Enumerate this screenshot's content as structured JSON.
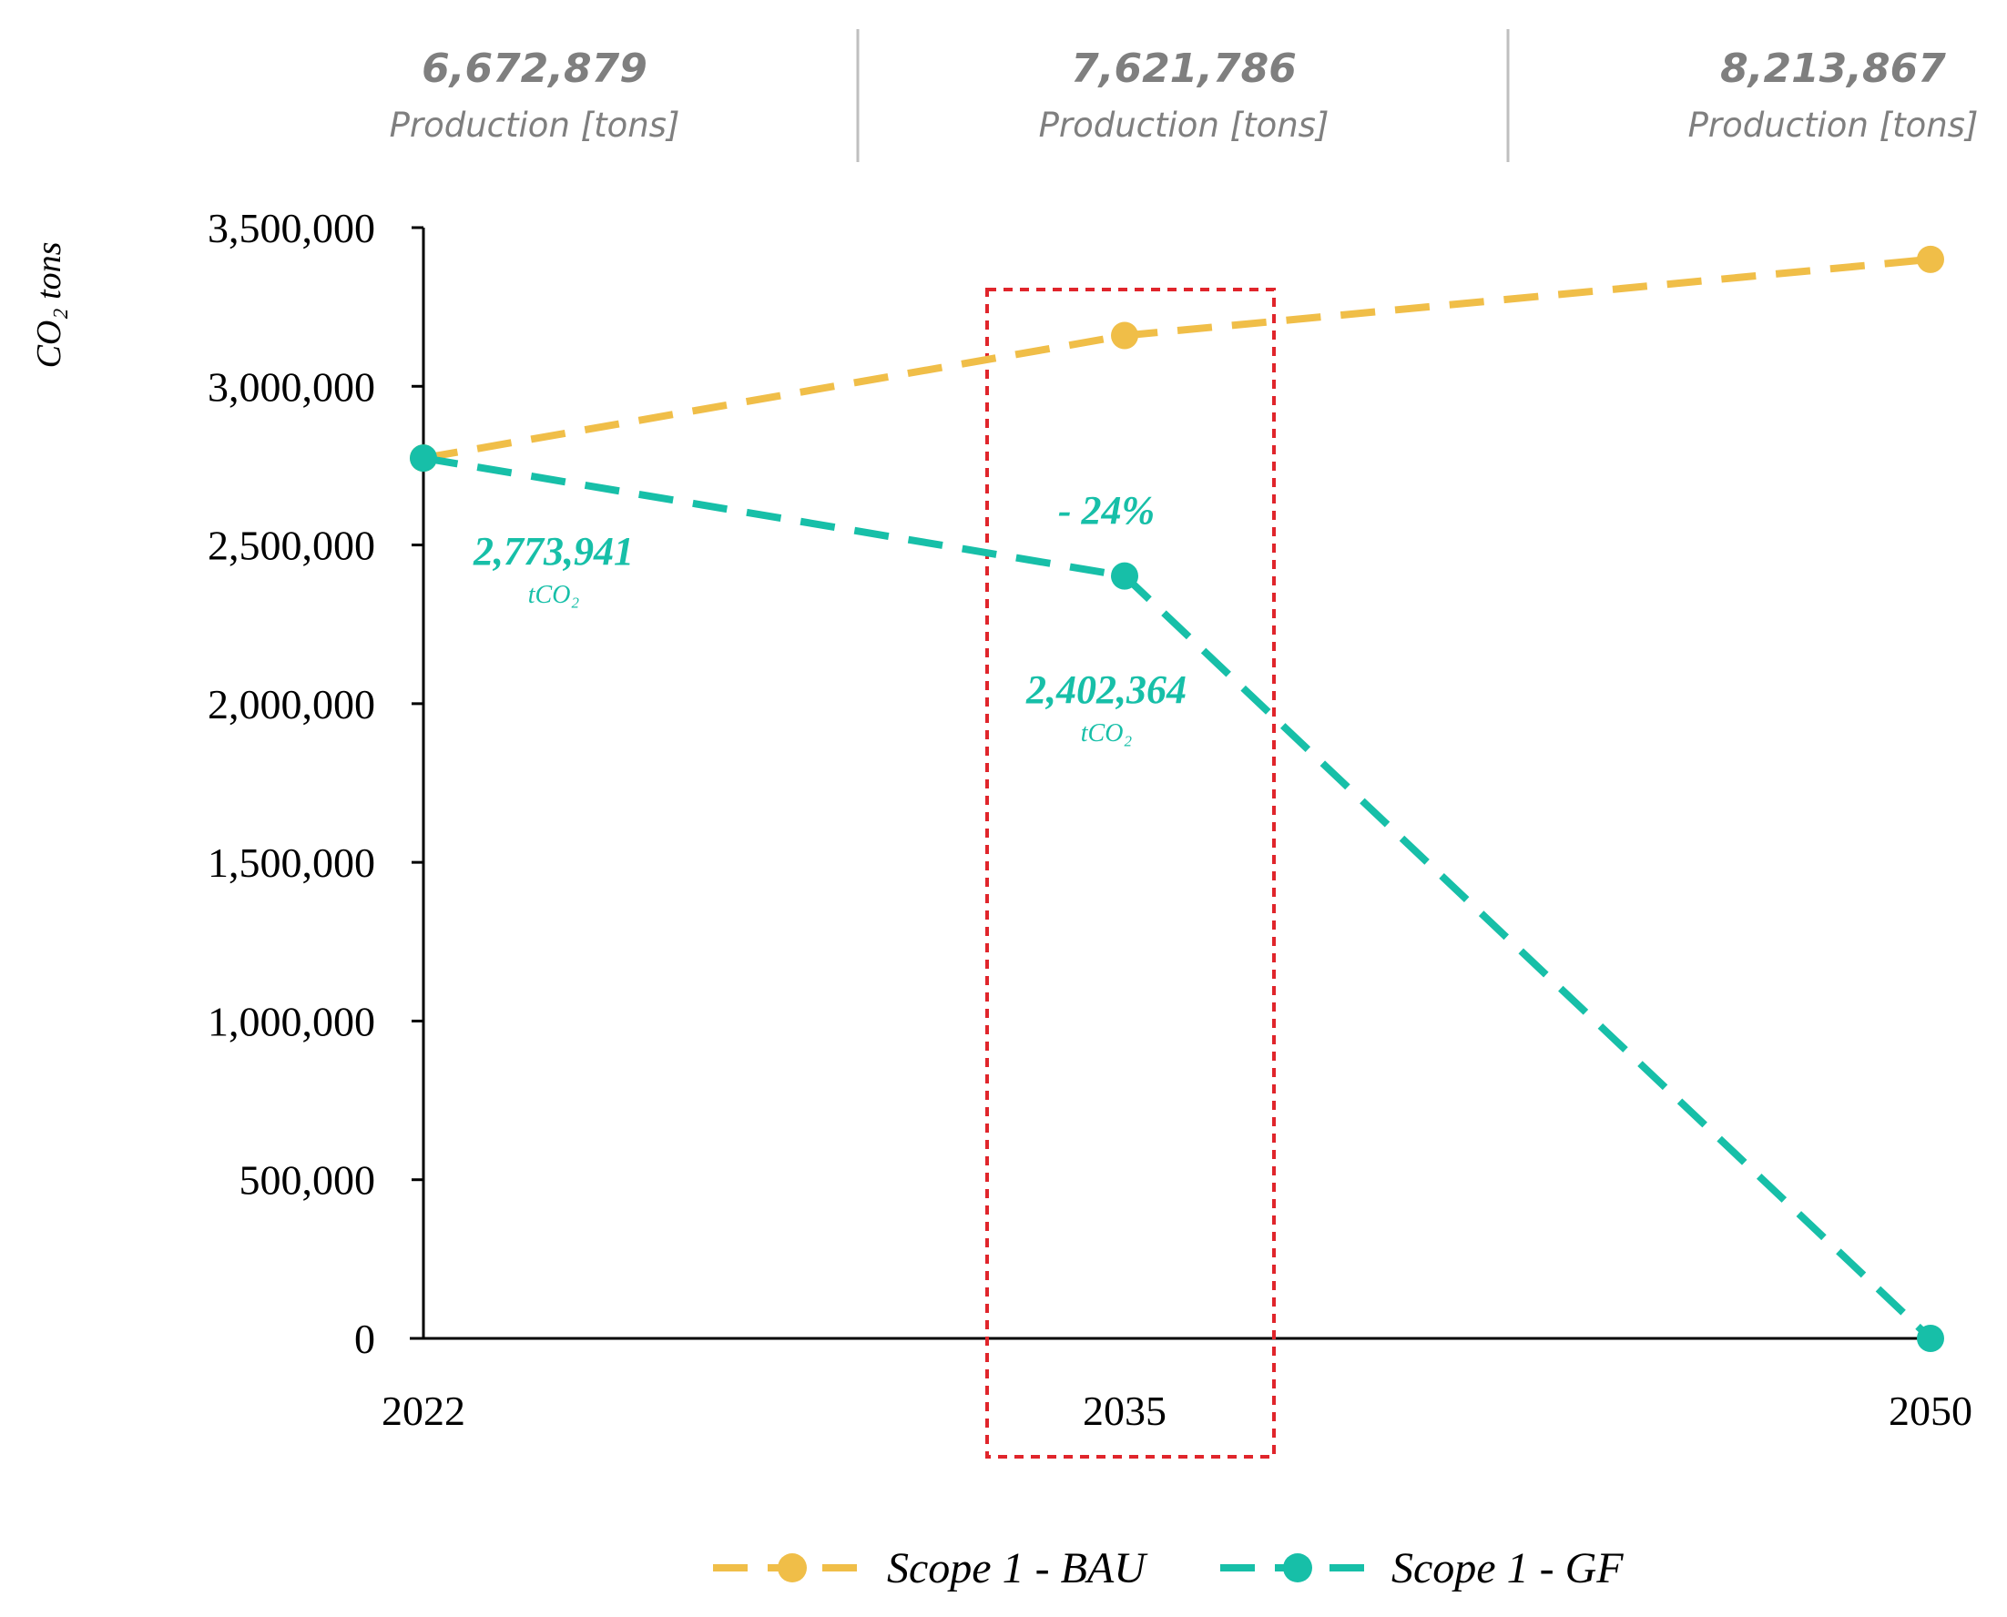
{
  "colors": {
    "bau": "#F0BE48",
    "gf": "#17BFA8",
    "highlight_box": "#E0252B",
    "header_text": "#7F7F7F",
    "axis": "#000000"
  },
  "production_header": [
    {
      "value": "6,672,879",
      "label": "Production [tons]"
    },
    {
      "value": "7,621,786",
      "label": "Production [tons]"
    },
    {
      "value": "8,213,867",
      "label": "Production [tons]"
    }
  ],
  "chart_data": {
    "type": "line",
    "title": "",
    "xlabel": "",
    "ylabel": "CO₂ tons",
    "categories": [
      "2022",
      "2035",
      "2050"
    ],
    "ylim": [
      0,
      3500000
    ],
    "yticks": [
      0,
      500000,
      1000000,
      1500000,
      2000000,
      2500000,
      3000000,
      3500000
    ],
    "ytick_labels": [
      "0",
      "500,000",
      "1,000,000",
      "1,500,000",
      "2,000,000",
      "2,500,000",
      "3,000,000",
      "3,500,000"
    ],
    "series": [
      {
        "name": "Scope 1 - BAU",
        "values": [
          2773941,
          3160000,
          3400000
        ],
        "style": "dashed",
        "marker": "circle"
      },
      {
        "name": "Scope 1 - GF",
        "values": [
          2773941,
          2402364,
          0
        ],
        "style": "dashed",
        "marker": "circle"
      }
    ],
    "annotations": [
      {
        "text": "2,773,941",
        "unit": "tCO₂",
        "category": "2022",
        "series": "Scope 1 - GF"
      },
      {
        "text": "2,402,364",
        "unit": "tCO₂",
        "category": "2035",
        "series": "Scope 1 - GF"
      },
      {
        "text": "- 24%",
        "category": "2035",
        "series": "Scope 1 - GF"
      }
    ],
    "highlight": {
      "category": "2035",
      "style": "dashed-rectangle"
    },
    "legend": {
      "position": "bottom",
      "entries": [
        "Scope 1 - BAU",
        "Scope 1 - GF"
      ]
    }
  }
}
